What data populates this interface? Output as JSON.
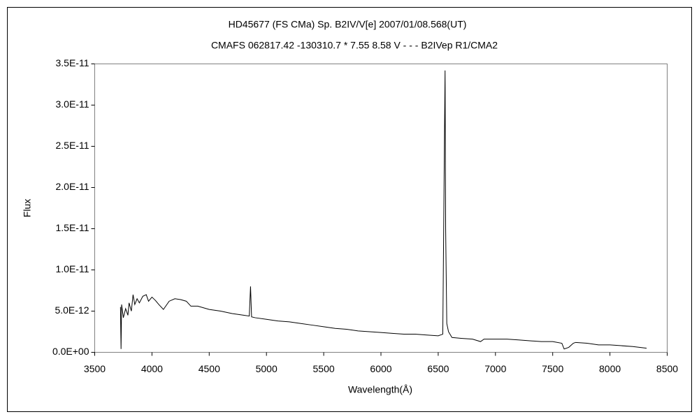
{
  "chart_data": {
    "type": "line",
    "title": "HD45677 (FS CMa)   Sp. B2IV/V[e]    2007/01/08.568(UT)",
    "subtitle": "CMAFS 062817.42 -130310.7 * 7.55 8.58 V - - - B2IVep R1/CMA2",
    "x_label": "Wavelength(Å)",
    "y_label": "Flux",
    "xlim": [
      3500,
      8500
    ],
    "xticks": [
      3500,
      4000,
      4500,
      5000,
      5500,
      6000,
      6500,
      7000,
      7500,
      8000,
      8500
    ],
    "ylim": [
      0,
      3.5e-11
    ],
    "yticks": [
      {
        "value": 0,
        "label": "0.0E+00"
      },
      {
        "value": 5e-12,
        "label": "5.0E-12"
      },
      {
        "value": 1e-11,
        "label": "1.0E-11"
      },
      {
        "value": 1.5e-11,
        "label": "1.5E-11"
      },
      {
        "value": 2e-11,
        "label": "2.0E-11"
      },
      {
        "value": 2.5e-11,
        "label": "2.5E-11"
      },
      {
        "value": 3e-11,
        "label": "3.0E-11"
      },
      {
        "value": 3.5e-11,
        "label": "3.5E-11"
      }
    ],
    "grid": false,
    "series": [
      {
        "color": "#000000",
        "x": [
          3725,
          3730,
          3735,
          3750,
          3770,
          3790,
          3800,
          3820,
          3835,
          3850,
          3870,
          3890,
          3920,
          3950,
          3970,
          4000,
          4030,
          4060,
          4100,
          4150,
          4200,
          4250,
          4300,
          4340,
          4400,
          4500,
          4600,
          4700,
          4800,
          4850,
          4861,
          4870,
          4900,
          5000,
          5100,
          5200,
          5300,
          5400,
          5500,
          5600,
          5700,
          5800,
          5900,
          6000,
          6100,
          6200,
          6300,
          6400,
          6500,
          6540,
          6555,
          6560,
          6565,
          6575,
          6590,
          6620,
          6700,
          6800,
          6870,
          6900,
          7000,
          7100,
          7200,
          7300,
          7400,
          7500,
          7580,
          7600,
          7640,
          7680,
          7700,
          7800,
          7900,
          8000,
          8100,
          8200,
          8320
        ],
        "values": [
          5.5e-12,
          4e-13,
          5.8e-12,
          4.2e-12,
          5.3e-12,
          4.5e-12,
          6e-12,
          5e-12,
          7e-12,
          5.8e-12,
          6.5e-12,
          6e-12,
          6.8e-12,
          7e-12,
          6.2e-12,
          6.7e-12,
          6.3e-12,
          5.8e-12,
          5.2e-12,
          6.2e-12,
          6.5e-12,
          6.4e-12,
          6.2e-12,
          5.6e-12,
          5.6e-12,
          5.2e-12,
          5e-12,
          4.7e-12,
          4.5e-12,
          4.4e-12,
          8e-12,
          4.3e-12,
          4.2e-12,
          4e-12,
          3.8e-12,
          3.7e-12,
          3.5e-12,
          3.3e-12,
          3.1e-12,
          2.9e-12,
          2.8e-12,
          2.6e-12,
          2.5e-12,
          2.4e-12,
          2.3e-12,
          2.2e-12,
          2.2e-12,
          2.1e-12,
          2e-12,
          2.2e-12,
          2.65e-11,
          3.42e-11,
          1.5e-11,
          3.5e-12,
          2.5e-12,
          1.8e-12,
          1.7e-12,
          1.6e-12,
          1.3e-12,
          1.6e-12,
          1.6e-12,
          1.6e-12,
          1.5e-12,
          1.4e-12,
          1.3e-12,
          1.3e-12,
          1.1e-12,
          4e-13,
          6e-13,
          1.1e-12,
          1.2e-12,
          1.1e-12,
          9e-13,
          9e-13,
          8e-13,
          7e-13,
          5e-13
        ]
      }
    ]
  }
}
